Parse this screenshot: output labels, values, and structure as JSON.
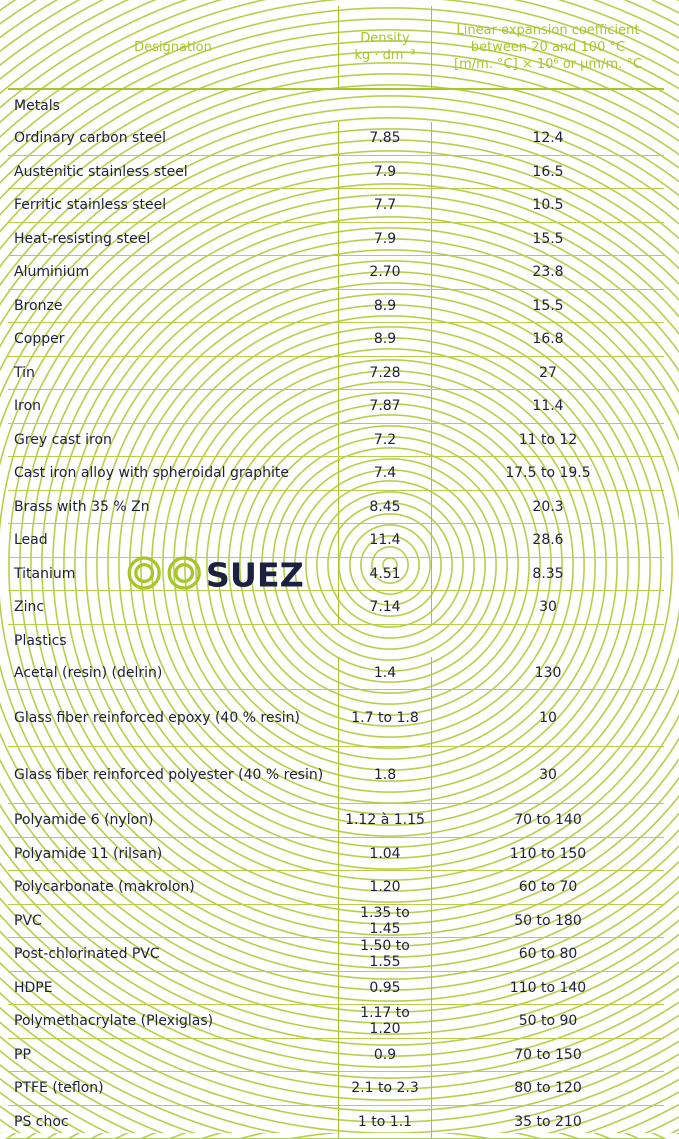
{
  "headers": {
    "designation": "Designation",
    "density": "Density",
    "density_unit": "kg · dm⁻³",
    "expansion": "Linear expansion coefficient",
    "expansion_range": "between 20 and 100 °C",
    "expansion_unit": "[m/m. °C] × 10⁶ or µm/m. °C"
  },
  "logo_text": "SUEZ",
  "colors": {
    "accent": "#a7c62c",
    "text": "#1d2140"
  },
  "sections": [
    {
      "title": "Metals",
      "rows": [
        [
          "Ordinary carbon steel",
          "7.85",
          "12.4"
        ],
        [
          "Austenitic stainless steel",
          "7.9",
          "16.5"
        ],
        [
          "Ferritic stainless steel",
          "7.7",
          "10.5"
        ],
        [
          "Heat-resisting steel",
          "7.9",
          "15.5"
        ],
        [
          "Aluminium",
          "2.70",
          "23.8"
        ],
        [
          "Bronze",
          "8.9",
          "15.5"
        ],
        [
          "Copper",
          "8.9",
          "16.8"
        ],
        [
          "Tin",
          "7.28",
          "27"
        ],
        [
          "Iron",
          "7.87",
          "11.4"
        ],
        [
          "Grey cast iron",
          "7.2",
          "11 to 12"
        ],
        [
          "Cast iron alloy with spheroidal graphite",
          "7.4",
          "17.5 to 19.5"
        ],
        [
          "Brass with 35 % Zn",
          "8.45",
          "20.3"
        ],
        [
          "Lead",
          "11.4",
          "28.6"
        ],
        [
          "Titanium",
          "4.51",
          "8.35"
        ],
        [
          "Zinc",
          "7.14",
          "30"
        ]
      ]
    },
    {
      "title": "Plastics",
      "rows": [
        [
          "Acetal (resin) (delrin)",
          "1.4",
          "130"
        ],
        [
          "Glass fiber reinforced epoxy (40 % resin)",
          "1.7 to 1.8",
          "10"
        ],
        [
          "Glass fiber reinforced polyester (40 % resin)",
          "1.8",
          "30"
        ],
        [
          "Polyamide 6 (nylon)",
          "1.12 à 1.15",
          "70 to 140"
        ],
        [
          "Polyamide 11 (rilsan)",
          "1.04",
          "110 to 150"
        ],
        [
          "Polycarbonate (makrolon)",
          "1.20",
          "60 to 70"
        ],
        [
          "PVC",
          "1.35 to 1.45",
          "50 to 180"
        ],
        [
          "Post-chlorinated PVC",
          "1.50 to 1.55",
          "60 to 80"
        ],
        [
          "HDPE",
          "0.95",
          "110 to 140"
        ],
        [
          "Polymethacrylate (Plexiglas)",
          "1.17 to 1.20",
          "50 to 90"
        ],
        [
          "PP",
          "0.9",
          "70 to 150"
        ],
        [
          "PTFE (teflon)",
          "2.1 to 2.3",
          "80 to 120"
        ],
        [
          "PS choc",
          "1 to 1.1",
          "35 to 210"
        ]
      ]
    }
  ]
}
